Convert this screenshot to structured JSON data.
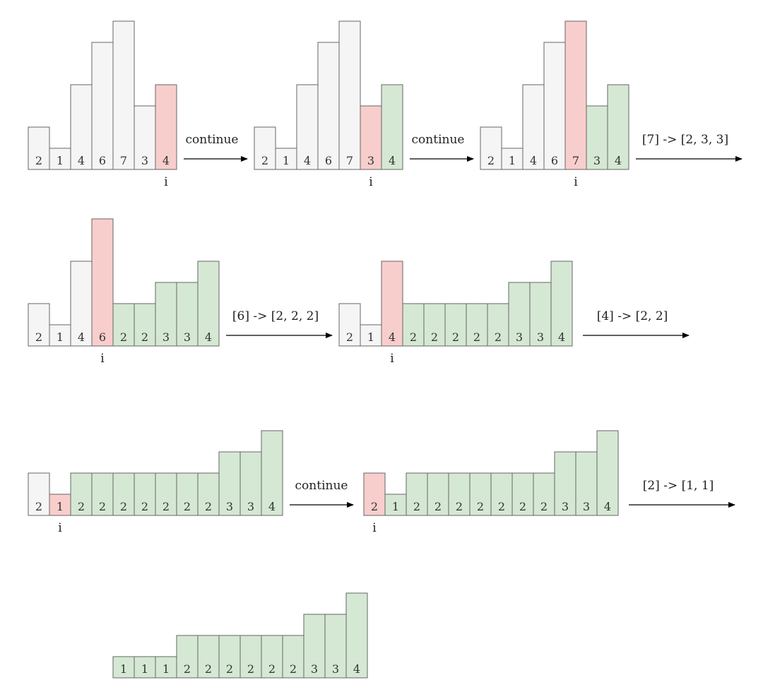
{
  "colors": {
    "untouched": "#f5f5f5",
    "current": "#f8cecc",
    "done": "#d5e8d4",
    "stroke": "#666666",
    "arrow": "#000000"
  },
  "diagrams": [
    {
      "values": [
        "2",
        "1",
        "4",
        "6",
        "7",
        "3",
        "4"
      ],
      "states": [
        "u",
        "u",
        "u",
        "u",
        "u",
        "u",
        "c"
      ],
      "pointer": 6,
      "pointer_label": "i"
    },
    {
      "values": [
        "2",
        "1",
        "4",
        "6",
        "7",
        "3",
        "4"
      ],
      "states": [
        "u",
        "u",
        "u",
        "u",
        "u",
        "c",
        "d"
      ],
      "pointer": 5,
      "pointer_label": "i"
    },
    {
      "values": [
        "2",
        "1",
        "4",
        "6",
        "7",
        "3",
        "4"
      ],
      "states": [
        "u",
        "u",
        "u",
        "u",
        "c",
        "d",
        "d"
      ],
      "pointer": 4,
      "pointer_label": "i"
    },
    {
      "values": [
        "2",
        "1",
        "4",
        "6",
        "2",
        "2",
        "3",
        "3",
        "4"
      ],
      "states": [
        "u",
        "u",
        "u",
        "c",
        "d",
        "d",
        "d",
        "d",
        "d"
      ],
      "pointer": 3,
      "pointer_label": "i"
    },
    {
      "values": [
        "2",
        "1",
        "4",
        "2",
        "2",
        "2",
        "2",
        "2",
        "3",
        "3",
        "4"
      ],
      "states": [
        "u",
        "u",
        "c",
        "d",
        "d",
        "d",
        "d",
        "d",
        "d",
        "d",
        "d"
      ],
      "pointer": 2,
      "pointer_label": "i"
    },
    {
      "values": [
        "2",
        "1",
        "2",
        "2",
        "2",
        "2",
        "2",
        "2",
        "2",
        "3",
        "3",
        "4"
      ],
      "states": [
        "u",
        "c",
        "d",
        "d",
        "d",
        "d",
        "d",
        "d",
        "d",
        "d",
        "d",
        "d"
      ],
      "pointer": 1,
      "pointer_label": "i"
    },
    {
      "values": [
        "2",
        "1",
        "2",
        "2",
        "2",
        "2",
        "2",
        "2",
        "2",
        "3",
        "3",
        "4"
      ],
      "states": [
        "c",
        "d",
        "d",
        "d",
        "d",
        "d",
        "d",
        "d",
        "d",
        "d",
        "d",
        "d"
      ],
      "pointer": 0,
      "pointer_label": "i"
    },
    {
      "values": [
        "1",
        "1",
        "1",
        "2",
        "2",
        "2",
        "2",
        "2",
        "2",
        "3",
        "3",
        "4"
      ],
      "states": [
        "d",
        "d",
        "d",
        "d",
        "d",
        "d",
        "d",
        "d",
        "d",
        "d",
        "d",
        "d"
      ],
      "pointer": null,
      "pointer_label": ""
    }
  ],
  "arrows": [
    {
      "label": "continue"
    },
    {
      "label": "continue"
    },
    {
      "label": "[7] -> [2, 3, 3]"
    },
    {
      "label": "[6] -> [2, 2, 2]"
    },
    {
      "label": "[4] -> [2, 2]"
    },
    {
      "label": "continue"
    },
    {
      "label": "[2] -> [1, 1]"
    }
  ]
}
